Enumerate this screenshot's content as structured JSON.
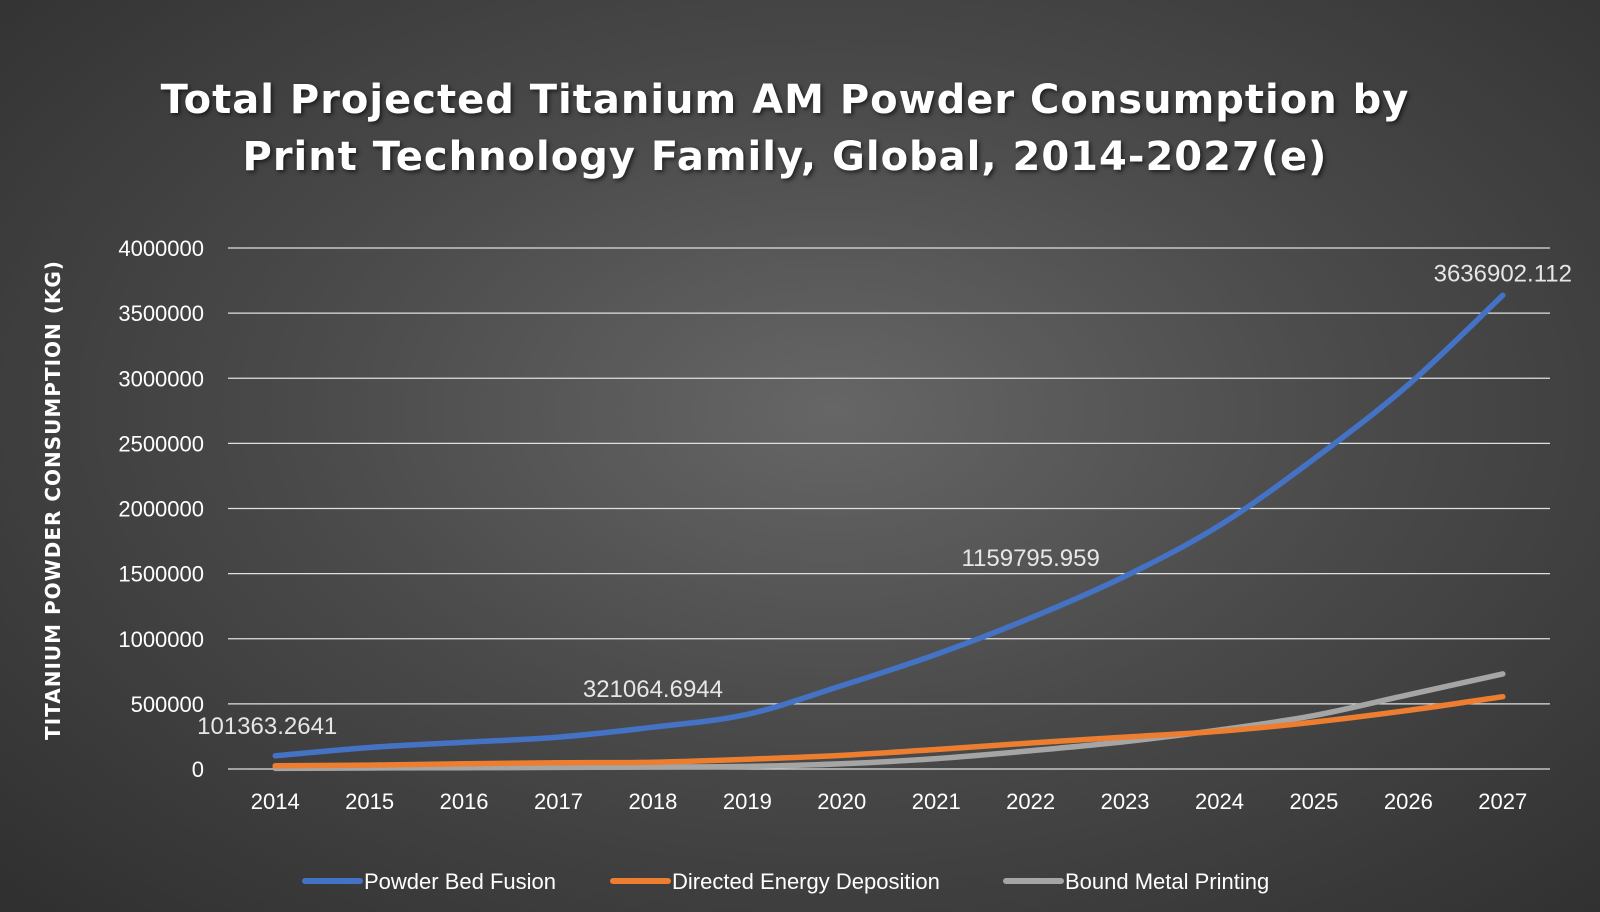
{
  "chart_data": {
    "type": "line",
    "title": [
      "Total Projected Titanium AM Powder Consumption by",
      "Print Technology  Family, Global, 2014-2027(e)"
    ],
    "xlabel": "",
    "ylabel": "TITANIUM  POWDER CONSUMPTION  (KG)",
    "categories": [
      "2014",
      "2015",
      "2016",
      "2017",
      "2018",
      "2019",
      "2020",
      "2021",
      "2022",
      "2023",
      "2024",
      "2025",
      "2026",
      "2027"
    ],
    "ylim": [
      0,
      4000000
    ],
    "yticks": [
      "0",
      "500000",
      "1000000",
      "1500000",
      "2000000",
      "2500000",
      "3000000",
      "3500000",
      "4000000"
    ],
    "grid": true,
    "legend_position": "bottom",
    "series": [
      {
        "name": "Powder Bed Fusion",
        "color": "#4472c4",
        "values": [
          101363.2641,
          165000,
          205000,
          245000,
          321064.6944,
          420000,
          640000,
          880000,
          1159795.959,
          1480000,
          1870000,
          2380000,
          2950000,
          3636902.112
        ]
      },
      {
        "name": "Directed Energy Deposition",
        "color": "#ed7d31",
        "values": [
          25000,
          30000,
          40000,
          48000,
          52000,
          75000,
          105000,
          150000,
          200000,
          245000,
          290000,
          360000,
          450000,
          555000
        ]
      },
      {
        "name": "Bound Metal Printing",
        "color": "#a5a5a5",
        "values": [
          5000,
          8000,
          10000,
          12000,
          15000,
          20000,
          40000,
          80000,
          140000,
          210000,
          300000,
          410000,
          570000,
          730000
        ]
      }
    ],
    "data_labels": [
      {
        "series": 0,
        "index": 0,
        "text": "101363.2641"
      },
      {
        "series": 0,
        "index": 4,
        "text": "321064.6944"
      },
      {
        "series": 0,
        "index": 8,
        "text": "1159795.959"
      },
      {
        "series": 0,
        "index": 13,
        "text": "3636902.112"
      }
    ]
  }
}
